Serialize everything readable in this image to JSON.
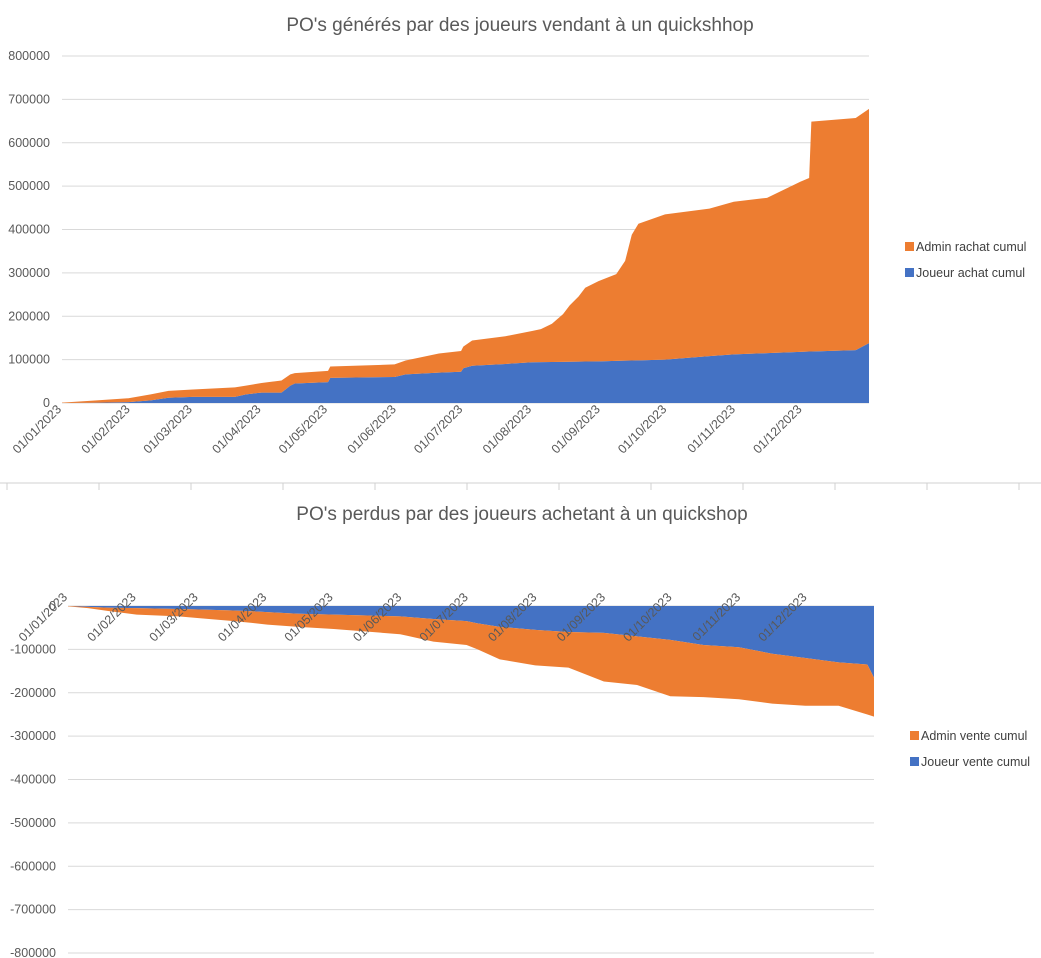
{
  "colors": {
    "orange": "#ED7D31",
    "blue": "#4472C4",
    "grid": "#D9D9D9",
    "text": "#595959"
  },
  "chart_data": [
    {
      "type": "area",
      "stacked": true,
      "title": "PO's générés par des joueurs vendant à un quickshhop",
      "ylim": [
        0,
        800000
      ],
      "yticks": [
        0,
        100000,
        200000,
        300000,
        400000,
        500000,
        600000,
        700000,
        800000
      ],
      "ytick_labels": [
        "0",
        "100000",
        "200000",
        "300000",
        "400000",
        "500000",
        "600000",
        "700000",
        "800000"
      ],
      "xlim": [
        "2023-01-01",
        "2023-12-31"
      ],
      "x_tick_labels": [
        "01/01/2023",
        "01/02/2023",
        "01/03/2023",
        "01/04/2023",
        "01/05/2023",
        "01/06/2023",
        "01/07/2023",
        "01/08/2023",
        "01/09/2023",
        "01/10/2023",
        "01/11/2023",
        "01/12/2023"
      ],
      "legend": "right",
      "grid": true,
      "series": [
        {
          "name": "Joueur achat cumul",
          "color": "#4472C4",
          "points": [
            [
              "2023-01-01",
              0
            ],
            [
              "2023-01-15",
              500
            ],
            [
              "2023-01-31",
              2000
            ],
            [
              "2023-02-10",
              6000
            ],
            [
              "2023-02-18",
              12000
            ],
            [
              "2023-03-01",
              14000
            ],
            [
              "2023-03-20",
              14000
            ],
            [
              "2023-03-25",
              20000
            ],
            [
              "2023-04-01",
              24000
            ],
            [
              "2023-04-10",
              24000
            ],
            [
              "2023-04-14",
              40000
            ],
            [
              "2023-04-16",
              45000
            ],
            [
              "2023-05-01",
              48000
            ],
            [
              "2023-05-02",
              58000
            ],
            [
              "2023-05-31",
              60000
            ],
            [
              "2023-06-05",
              66000
            ],
            [
              "2023-06-20",
              70000
            ],
            [
              "2023-06-30",
              72000
            ],
            [
              "2023-07-01",
              80000
            ],
            [
              "2023-07-05",
              86000
            ],
            [
              "2023-07-20",
              90000
            ],
            [
              "2023-08-01",
              94000
            ],
            [
              "2023-08-31",
              96000
            ],
            [
              "2023-09-30",
              100000
            ],
            [
              "2023-10-20",
              108000
            ],
            [
              "2023-10-31",
              112000
            ],
            [
              "2023-11-15",
              115000
            ],
            [
              "2023-11-30",
              118000
            ],
            [
              "2023-12-25",
              122000
            ],
            [
              "2023-12-31",
              138000
            ]
          ]
        },
        {
          "name": "Admin rachat cumul",
          "color": "#ED7D31",
          "points": [
            [
              "2023-01-01",
              1000
            ],
            [
              "2023-01-08",
              3000
            ],
            [
              "2023-01-15",
              5000
            ],
            [
              "2023-01-31",
              9000
            ],
            [
              "2023-02-10",
              14000
            ],
            [
              "2023-02-18",
              16000
            ],
            [
              "2023-03-01",
              17000
            ],
            [
              "2023-03-20",
              22000
            ],
            [
              "2023-03-25",
              20000
            ],
            [
              "2023-04-01",
              22000
            ],
            [
              "2023-04-10",
              28000
            ],
            [
              "2023-04-14",
              26000
            ],
            [
              "2023-04-16",
              24000
            ],
            [
              "2023-05-01",
              26000
            ],
            [
              "2023-05-02",
              26000
            ],
            [
              "2023-05-31",
              29000
            ],
            [
              "2023-06-05",
              32000
            ],
            [
              "2023-06-20",
              44000
            ],
            [
              "2023-06-30",
              48000
            ],
            [
              "2023-07-01",
              50000
            ],
            [
              "2023-07-05",
              58000
            ],
            [
              "2023-07-20",
              64000
            ],
            [
              "2023-08-01",
              72000
            ],
            [
              "2023-08-05",
              76000
            ],
            [
              "2023-08-10",
              88000
            ],
            [
              "2023-08-15",
              110000
            ],
            [
              "2023-08-18",
              130000
            ],
            [
              "2023-08-22",
              150000
            ],
            [
              "2023-08-25",
              170000
            ],
            [
              "2023-08-31",
              185000
            ],
            [
              "2023-09-08",
              200000
            ],
            [
              "2023-09-12",
              230000
            ],
            [
              "2023-09-15",
              290000
            ],
            [
              "2023-09-18",
              315000
            ],
            [
              "2023-09-30",
              335000
            ],
            [
              "2023-10-20",
              340000
            ],
            [
              "2023-10-31",
              352000
            ],
            [
              "2023-11-15",
              358000
            ],
            [
              "2023-11-30",
              392000
            ],
            [
              "2023-12-04",
              400000
            ],
            [
              "2023-12-05",
              530000
            ],
            [
              "2023-12-25",
              535000
            ],
            [
              "2023-12-31",
              540000
            ]
          ]
        }
      ]
    },
    {
      "type": "area",
      "stacked": true,
      "title": "PO's perdus par des joueurs achetant à un quickshop",
      "ylim": [
        -800000,
        0
      ],
      "yticks": [
        0,
        -100000,
        -200000,
        -300000,
        -400000,
        -500000,
        -600000,
        -700000,
        -800000
      ],
      "ytick_labels": [
        "0",
        "-100000",
        "-200000",
        "-300000",
        "-400000",
        "-500000",
        "-600000",
        "-700000",
        "-800000"
      ],
      "xlim": [
        "2023-01-01",
        "2023-12-31"
      ],
      "x_tick_labels": [
        "01/01/2023",
        "01/02/2023",
        "01/03/2023",
        "01/04/2023",
        "01/05/2023",
        "01/06/2023",
        "01/07/2023",
        "01/08/2023",
        "01/09/2023",
        "01/10/2023",
        "01/11/2023",
        "01/12/2023"
      ],
      "legend": "right",
      "grid": true,
      "series": [
        {
          "name": "Joueur vente cumul",
          "color": "#4472C4",
          "points": [
            [
              "2023-01-01",
              0
            ],
            [
              "2023-01-10",
              -2000
            ],
            [
              "2023-01-20",
              -4000
            ],
            [
              "2023-02-01",
              -5000
            ],
            [
              "2023-02-20",
              -7000
            ],
            [
              "2023-03-01",
              -8000
            ],
            [
              "2023-03-15",
              -10000
            ],
            [
              "2023-03-25",
              -12000
            ],
            [
              "2023-04-01",
              -14000
            ],
            [
              "2023-04-15",
              -18000
            ],
            [
              "2023-05-01",
              -20000
            ],
            [
              "2023-05-31",
              -24000
            ],
            [
              "2023-06-15",
              -30000
            ],
            [
              "2023-06-30",
              -35000
            ],
            [
              "2023-07-05",
              -40000
            ],
            [
              "2023-07-15",
              -48000
            ],
            [
              "2023-07-31",
              -55000
            ],
            [
              "2023-08-15",
              -60000
            ],
            [
              "2023-08-31",
              -62000
            ],
            [
              "2023-09-15",
              -70000
            ],
            [
              "2023-09-30",
              -78000
            ],
            [
              "2023-10-15",
              -90000
            ],
            [
              "2023-10-31",
              -95000
            ],
            [
              "2023-11-15",
              -110000
            ],
            [
              "2023-11-30",
              -120000
            ],
            [
              "2023-12-15",
              -130000
            ],
            [
              "2023-12-28",
              -135000
            ],
            [
              "2023-12-31",
              -165000
            ]
          ]
        },
        {
          "name": "Admin vente cumul",
          "color": "#ED7D31",
          "points": [
            [
              "2023-01-01",
              -1000
            ],
            [
              "2023-01-10",
              -3000
            ],
            [
              "2023-01-20",
              -8000
            ],
            [
              "2023-02-01",
              -15000
            ],
            [
              "2023-02-20",
              -17000
            ],
            [
              "2023-03-01",
              -20000
            ],
            [
              "2023-03-15",
              -24000
            ],
            [
              "2023-03-25",
              -27000
            ],
            [
              "2023-04-01",
              -29000
            ],
            [
              "2023-04-15",
              -30000
            ],
            [
              "2023-05-01",
              -33000
            ],
            [
              "2023-05-31",
              -41000
            ],
            [
              "2023-06-15",
              -52000
            ],
            [
              "2023-06-30",
              -55000
            ],
            [
              "2023-07-05",
              -60000
            ],
            [
              "2023-07-15",
              -75000
            ],
            [
              "2023-07-31",
              -82000
            ],
            [
              "2023-08-15",
              -82000
            ],
            [
              "2023-08-31",
              -112000
            ],
            [
              "2023-09-15",
              -112000
            ],
            [
              "2023-09-30",
              -130000
            ],
            [
              "2023-10-15",
              -120000
            ],
            [
              "2023-10-31",
              -120000
            ],
            [
              "2023-11-15",
              -115000
            ],
            [
              "2023-11-30",
              -110000
            ],
            [
              "2023-12-15",
              -100000
            ],
            [
              "2023-12-28",
              -115000
            ],
            [
              "2023-12-31",
              -90000
            ]
          ]
        }
      ]
    }
  ]
}
